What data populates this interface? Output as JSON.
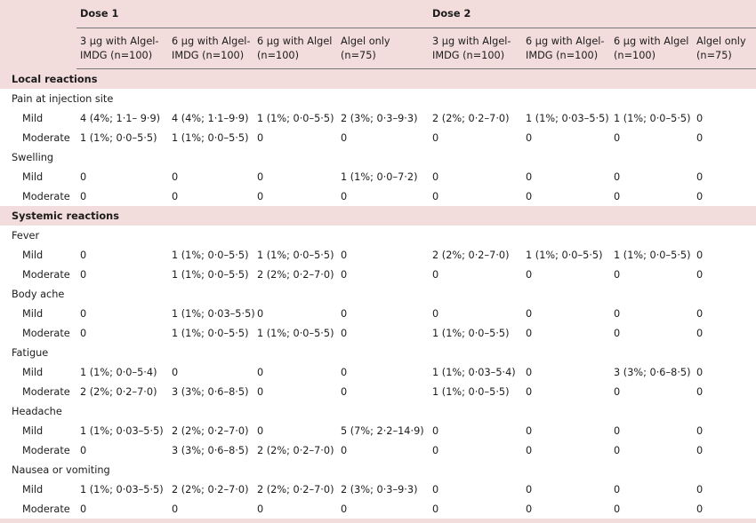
{
  "header": {
    "dose1": "Dose 1",
    "dose2": "Dose 2",
    "groups": [
      [
        "3 µg with Algel-",
        "IMDG (n=100)"
      ],
      [
        "6 µg with Algel-",
        "IMDG (n=100)"
      ],
      [
        "6 µg with Algel",
        "(n=100)"
      ],
      [
        "Algel only",
        "(n=75)"
      ],
      [
        "3 µg with Algel-",
        "IMDG (n=100)"
      ],
      [
        "6 µg with Algel-",
        "IMDG (n=100)"
      ],
      [
        "6 µg with Algel",
        "(n=100)"
      ],
      [
        "Algel only",
        "(n=75)"
      ]
    ]
  },
  "sections": [
    {
      "title": "Local reactions",
      "groups": [
        {
          "name": "Pain at injection site",
          "rows": [
            {
              "label": "Mild",
              "values": [
                "4 (4%; 1·1– 9·9)",
                "4 (4%; 1·1–9·9)",
                "1 (1%; 0·0–5·5)",
                "2 (3%; 0·3–9·3)",
                "2 (2%; 0·2–7·0)",
                "1 (1%; 0·03–5·5)",
                "1 (1%; 0·0–5·5)",
                "0"
              ]
            },
            {
              "label": "Moderate",
              "values": [
                "1 (1%; 0·0–5·5)",
                "1 (1%; 0·0–5·5)",
                "0",
                "0",
                "0",
                "0",
                "0",
                "0"
              ]
            }
          ]
        },
        {
          "name": "Swelling",
          "rows": [
            {
              "label": "Mild",
              "values": [
                "0",
                "0",
                "0",
                "1 (1%; 0·0–7·2)",
                "0",
                "0",
                "0",
                "0"
              ]
            },
            {
              "label": "Moderate",
              "values": [
                "0",
                "0",
                "0",
                "0",
                "0",
                "0",
                "0",
                "0"
              ]
            }
          ]
        }
      ]
    },
    {
      "title": "Systemic reactions",
      "groups": [
        {
          "name": "Fever",
          "rows": [
            {
              "label": "Mild",
              "values": [
                "0",
                "1 (1%; 0·0–5·5)",
                "1 (1%; 0·0–5·5)",
                "0",
                "2 (2%; 0·2–7·0)",
                "1 (1%; 0·0–5·5)",
                "1 (1%; 0·0–5·5)",
                "0"
              ]
            },
            {
              "label": "Moderate",
              "values": [
                "0",
                "1 (1%; 0·0–5·5)",
                "2 (2%; 0·2–7·0)",
                "0",
                "0",
                "0",
                "0",
                "0"
              ]
            }
          ]
        },
        {
          "name": "Body ache",
          "rows": [
            {
              "label": "Mild",
              "values": [
                "0",
                "1 (1%; 0·03–5·5)",
                "0",
                "0",
                "0",
                "0",
                "0",
                "0"
              ]
            },
            {
              "label": "Moderate",
              "values": [
                "0",
                "1 (1%; 0·0–5·5)",
                "1 (1%; 0·0–5·5)",
                "0",
                "1 (1%; 0·0–5·5)",
                "0",
                "0",
                "0"
              ]
            }
          ]
        },
        {
          "name": "Fatigue",
          "rows": [
            {
              "label": "Mild",
              "values": [
                "1 (1%; 0·0–5·4)",
                "0",
                "0",
                "0",
                "1 (1%; 0·03–5·4)",
                "0",
                "3 (3%; 0·6–8·5)",
                "0"
              ]
            },
            {
              "label": "Moderate",
              "values": [
                "2 (2%; 0·2–7·0)",
                "3 (3%; 0·6–8·5)",
                "0",
                "0",
                "1 (1%; 0·0–5·5)",
                "0",
                "0",
                "0"
              ]
            }
          ]
        },
        {
          "name": "Headache",
          "rows": [
            {
              "label": "Mild",
              "values": [
                "1 (1%; 0·03–5·5)",
                "2 (2%; 0·2–7·0)",
                "0",
                "5 (7%; 2·2–14·9)",
                "0",
                "0",
                "0",
                "0"
              ]
            },
            {
              "label": "Moderate",
              "values": [
                "0",
                "3 (3%; 0·6–8·5)",
                "2 (2%; 0·2–7·0)",
                "0",
                "0",
                "0",
                "0",
                "0"
              ]
            }
          ]
        },
        {
          "name": "Nausea or vomiting",
          "rows": [
            {
              "label": "Mild",
              "values": [
                "1 (1%; 0·03–5·5)",
                "2 (2%; 0·2–7·0)",
                "2 (2%; 0·2–7·0)",
                "2 (3%; 0·3–9·3)",
                "0",
                "0",
                "0",
                "0"
              ]
            },
            {
              "label": "Moderate",
              "values": [
                "0",
                "0",
                "0",
                "0",
                "0",
                "0",
                "0",
                "0"
              ]
            }
          ]
        }
      ]
    }
  ]
}
